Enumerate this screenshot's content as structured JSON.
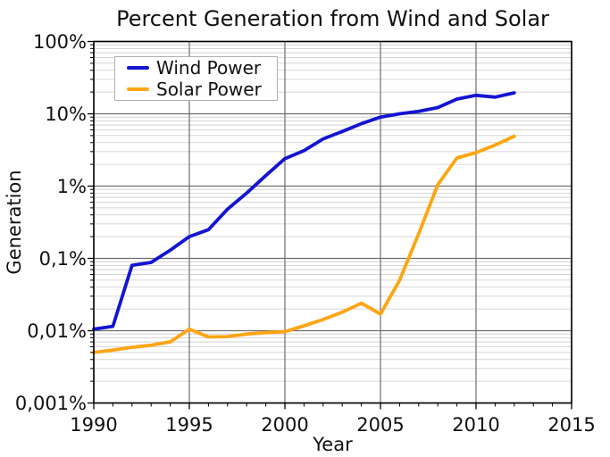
{
  "figure": {
    "background": "#ffffff",
    "frame_color": "#000000"
  },
  "chart_data": {
    "type": "line",
    "title": "Percent Generation from Wind and Solar",
    "xlabel": "Year",
    "ylabel": "Generation",
    "x_scale": "linear",
    "y_scale": "log",
    "xlim": [
      1990,
      2015
    ],
    "ylim": [
      0.001,
      100
    ],
    "x_major_ticks": [
      1990,
      1995,
      2000,
      2005,
      2010,
      2015
    ],
    "x_tick_labels": [
      "1990",
      "1995",
      "2000",
      "2005",
      "2010",
      "2015"
    ],
    "x_minor_tick_step_years": 1,
    "y_major_ticks": [
      100,
      10,
      1,
      0.1,
      0.01,
      0.001
    ],
    "y_tick_labels": [
      "100%",
      "10%",
      "1%",
      "0,1%",
      "0,01%",
      "0,001%"
    ],
    "grid": {
      "major_vertical": true,
      "major_horizontal": true,
      "minor_horizontal_log": true,
      "minor_vertical": false,
      "major_color": "#6e6e6e",
      "minor_color": "#c9c9c9"
    },
    "legend": {
      "position": "upper-left",
      "border_color": "#b0b0b0"
    },
    "x": [
      1990,
      1991,
      1992,
      1993,
      1994,
      1995,
      1996,
      1997,
      1998,
      1999,
      2000,
      2001,
      2002,
      2003,
      2004,
      2005,
      2006,
      2007,
      2008,
      2009,
      2010,
      2011,
      2012
    ],
    "series": [
      {
        "name": "Wind Power",
        "color": "#1414d2",
        "values": [
          0.0105,
          0.0115,
          0.08,
          0.088,
          0.13,
          0.2,
          0.25,
          0.48,
          0.8,
          1.4,
          2.4,
          3.1,
          4.5,
          5.7,
          7.3,
          9.0,
          10.0,
          10.8,
          12.2,
          16.0,
          18.0,
          17.0,
          19.5
        ]
      },
      {
        "name": "Solar Power",
        "color": "#ffa512",
        "values": [
          0.005,
          0.0054,
          0.0059,
          0.0063,
          0.007,
          0.0105,
          0.0082,
          0.0083,
          0.009,
          0.0094,
          0.0097,
          0.0117,
          0.0143,
          0.018,
          0.024,
          0.017,
          0.05,
          0.22,
          1.05,
          2.45,
          2.9,
          3.7,
          4.9
        ]
      }
    ]
  }
}
